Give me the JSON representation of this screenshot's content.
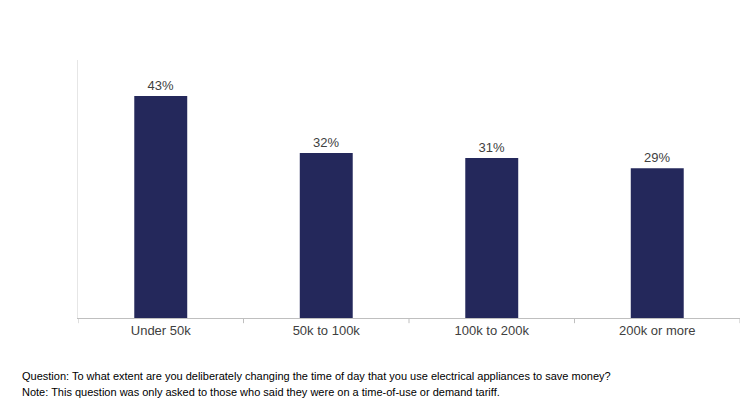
{
  "chart_data": {
    "type": "bar",
    "categories": [
      "Under 50k",
      "50k to 100k",
      "100k to 200k",
      "200k or more"
    ],
    "values": [
      43,
      32,
      31,
      29
    ],
    "value_labels": [
      "43%",
      "32%",
      "31%",
      "29%"
    ],
    "data_labels": true,
    "color": "#24285b",
    "ylim": [
      0,
      50
    ],
    "yticks": [],
    "tick_labels": "x",
    "grid": false,
    "annotations": [
      "Question: To what extent are you deliberately changing the time of day that you use electrical appliances to save money?",
      "Note: This question was only asked to those who said they were on a time-of-use or demand tariff."
    ]
  }
}
